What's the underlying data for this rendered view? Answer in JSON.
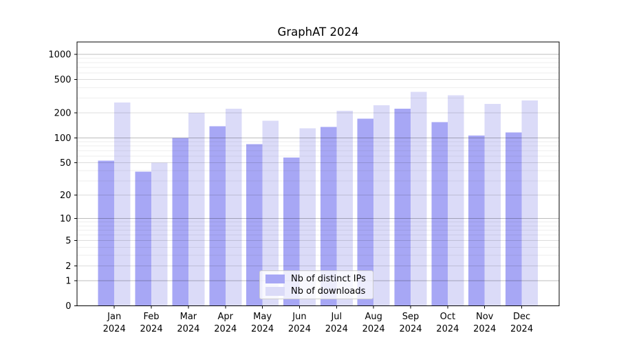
{
  "title": "GraphAT 2024",
  "chart_data": {
    "type": "bar",
    "title": "GraphAT 2024",
    "categories": [
      "Jan 2024",
      "Feb 2024",
      "Mar 2024",
      "Apr 2024",
      "May 2024",
      "Jun 2024",
      "Jul 2024",
      "Aug 2024",
      "Sep 2024",
      "Oct 2024",
      "Nov 2024",
      "Dec 2024"
    ],
    "series": [
      {
        "name": "Nb of distinct IPs",
        "color": "#a7a7f5",
        "values": [
          53,
          39,
          100,
          138,
          84,
          58,
          135,
          170,
          224,
          155,
          107,
          116
        ]
      },
      {
        "name": "Nb of downloads",
        "color": "#dbdbf8",
        "values": [
          265,
          50,
          200,
          223,
          160,
          130,
          212,
          246,
          355,
          325,
          255,
          281
        ]
      }
    ],
    "yscale": "log1p",
    "y_ticks": [
      0,
      1,
      2,
      5,
      10,
      20,
      50,
      100,
      200,
      500,
      1000
    ],
    "ylim": [
      0,
      1400
    ],
    "grid": "on",
    "legend_position": "lower-center"
  },
  "style_colors": {
    "major_grid": "#bcbcbc",
    "mid_grid": "#dcdcdc",
    "minor_grid": "#eeeeee",
    "spine": "#000000",
    "tick_label": "#000000"
  }
}
